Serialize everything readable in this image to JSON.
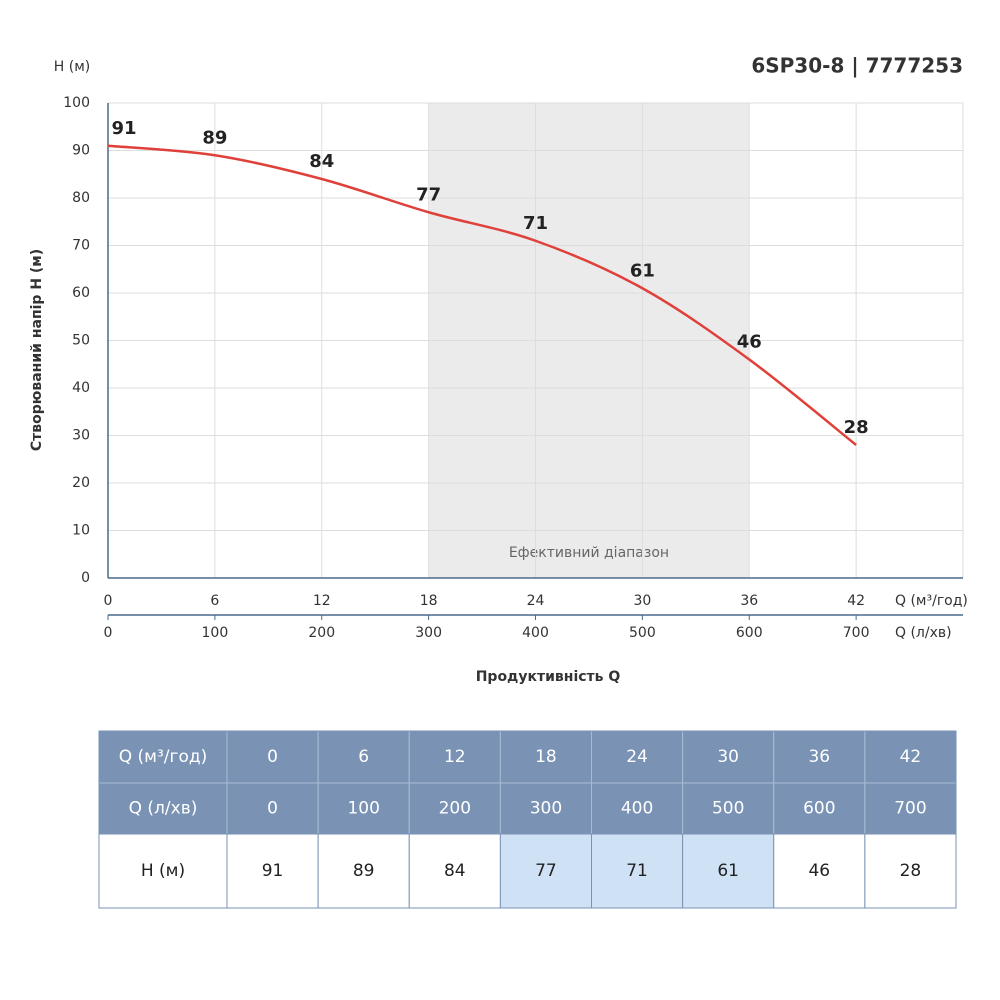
{
  "chart_data": {
    "type": "line",
    "title": "6SP30-8 | 7777253",
    "y_label_top": "H (м)",
    "y_label": "Створюваний напір H (м)",
    "x_label": "Q (м³/год)",
    "x2_label": "Q (л/хв)",
    "x_title": "Продуктивність Q",
    "x": [
      0,
      6,
      12,
      18,
      24,
      30,
      36,
      42
    ],
    "x2": [
      0,
      100,
      200,
      300,
      400,
      500,
      600,
      700
    ],
    "series": [
      {
        "name": "H (м)",
        "color": "#e0403a",
        "values": [
          91,
          89,
          84,
          77,
          71,
          61,
          46,
          28
        ]
      }
    ],
    "xlim": [
      0,
      48
    ],
    "xticks": [
      0,
      6,
      12,
      18,
      24,
      30,
      36,
      42
    ],
    "x2lim": [
      0,
      800
    ],
    "x2ticks": [
      0,
      100,
      200,
      300,
      400,
      500,
      600,
      700
    ],
    "ylim": [
      0,
      100
    ],
    "yticks": [
      0,
      10,
      20,
      30,
      40,
      50,
      60,
      70,
      80,
      90,
      100
    ],
    "grid": true,
    "highlight": {
      "xlim": [
        18,
        36
      ],
      "label": "Ефективний діапазон",
      "color": "#ebebeb"
    }
  },
  "table": {
    "rows": [
      [
        "Q (м³/год)",
        0,
        6,
        12,
        18,
        24,
        30,
        36,
        42
      ],
      [
        "Q (л/хв)",
        0,
        100,
        200,
        300,
        400,
        500,
        600,
        700
      ],
      [
        "H (м)",
        91,
        89,
        84,
        77,
        71,
        61,
        46,
        28
      ]
    ],
    "header_rows": 2,
    "header_color": "#7a93b5",
    "highlight_color": "#cfe2f5"
  }
}
